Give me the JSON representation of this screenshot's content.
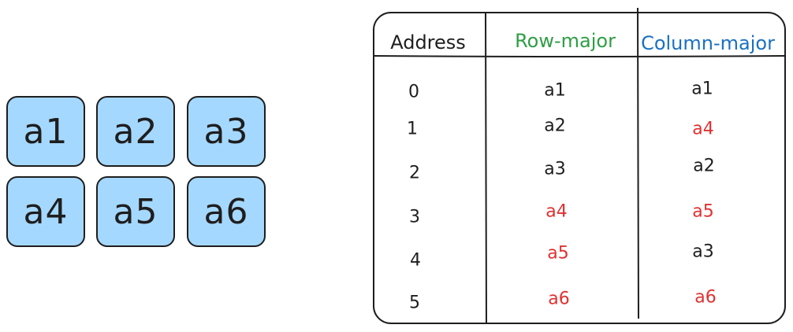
{
  "matrix": {
    "cells": [
      "a1",
      "a2",
      "a3",
      "a4",
      "a5",
      "a6"
    ]
  },
  "table": {
    "headers": {
      "address": "Address",
      "row_major": "Row-major",
      "column_major": "Column-major"
    },
    "rows": [
      {
        "address": "0",
        "row_major": "a1",
        "column_major": "a1"
      },
      {
        "address": "1",
        "row_major": "a2",
        "column_major": "a4"
      },
      {
        "address": "2",
        "row_major": "a3",
        "column_major": "a2"
      },
      {
        "address": "3",
        "row_major": "a4",
        "column_major": "a5"
      },
      {
        "address": "4",
        "row_major": "a5",
        "column_major": "a3"
      },
      {
        "address": "5",
        "row_major": "a6",
        "column_major": "a6"
      }
    ]
  },
  "colors": {
    "cell_fill": "#a5d8ff",
    "stroke": "#1e1e1e",
    "row_major_header": "#2f9e44",
    "column_major_header": "#1971c2",
    "highlight": "#e03131"
  }
}
